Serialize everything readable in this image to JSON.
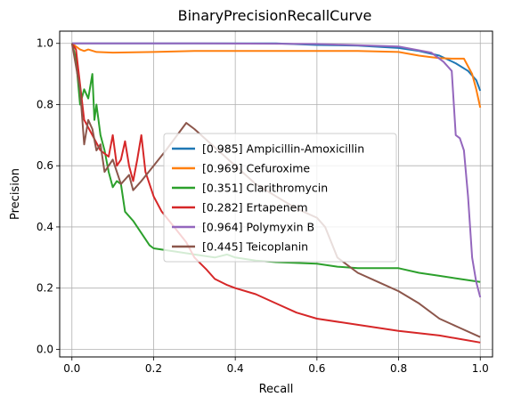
{
  "chart_data": {
    "type": "line",
    "title": "BinaryPrecisionRecallCurve",
    "xlabel": "Recall",
    "ylabel": "Precision",
    "xlim": [
      -0.03,
      1.03
    ],
    "ylim": [
      -0.025,
      1.04
    ],
    "xticks": [
      "0.0",
      "0.2",
      "0.4",
      "0.6",
      "0.8",
      "1.0"
    ],
    "yticks": [
      "0.0",
      "0.2",
      "0.4",
      "0.6",
      "0.8",
      "1.0"
    ],
    "grid": true,
    "legend_position": "center",
    "series": [
      {
        "name": "[0.985] Ampicillin-Amoxicillin",
        "color": "#1f77b4",
        "points": [
          [
            0,
            1.0
          ],
          [
            0.1,
            1.0
          ],
          [
            0.3,
            1.0
          ],
          [
            0.5,
            1.0
          ],
          [
            0.6,
            0.995
          ],
          [
            0.7,
            0.993
          ],
          [
            0.8,
            0.985
          ],
          [
            0.85,
            0.975
          ],
          [
            0.9,
            0.96
          ],
          [
            0.94,
            0.935
          ],
          [
            0.97,
            0.91
          ],
          [
            0.99,
            0.88
          ],
          [
            1.0,
            0.845
          ]
        ]
      },
      {
        "name": "[0.969] Cefuroxime",
        "color": "#ff7f0e",
        "points": [
          [
            0,
            1.0
          ],
          [
            0.01,
            0.99
          ],
          [
            0.02,
            0.98
          ],
          [
            0.03,
            0.975
          ],
          [
            0.04,
            0.98
          ],
          [
            0.06,
            0.972
          ],
          [
            0.1,
            0.97
          ],
          [
            0.2,
            0.972
          ],
          [
            0.3,
            0.975
          ],
          [
            0.5,
            0.975
          ],
          [
            0.7,
            0.975
          ],
          [
            0.8,
            0.972
          ],
          [
            0.85,
            0.96
          ],
          [
            0.88,
            0.955
          ],
          [
            0.9,
            0.952
          ],
          [
            0.93,
            0.95
          ],
          [
            0.96,
            0.95
          ],
          [
            0.98,
            0.9
          ],
          [
            0.99,
            0.85
          ],
          [
            1.0,
            0.79
          ]
        ]
      },
      {
        "name": "[0.351] Clarithromycin",
        "color": "#2ca02c",
        "points": [
          [
            0,
            1.0
          ],
          [
            0.01,
            0.95
          ],
          [
            0.02,
            0.8
          ],
          [
            0.03,
            0.85
          ],
          [
            0.04,
            0.82
          ],
          [
            0.05,
            0.9
          ],
          [
            0.055,
            0.75
          ],
          [
            0.06,
            0.8
          ],
          [
            0.07,
            0.7
          ],
          [
            0.08,
            0.65
          ],
          [
            0.09,
            0.58
          ],
          [
            0.1,
            0.53
          ],
          [
            0.11,
            0.55
          ],
          [
            0.12,
            0.54
          ],
          [
            0.13,
            0.45
          ],
          [
            0.15,
            0.42
          ],
          [
            0.17,
            0.38
          ],
          [
            0.19,
            0.34
          ],
          [
            0.2,
            0.33
          ],
          [
            0.25,
            0.32
          ],
          [
            0.3,
            0.31
          ],
          [
            0.35,
            0.3
          ],
          [
            0.38,
            0.31
          ],
          [
            0.4,
            0.3
          ],
          [
            0.45,
            0.29
          ],
          [
            0.5,
            0.285
          ],
          [
            0.6,
            0.28
          ],
          [
            0.65,
            0.27
          ],
          [
            0.7,
            0.265
          ],
          [
            0.8,
            0.265
          ],
          [
            0.85,
            0.25
          ],
          [
            0.9,
            0.24
          ],
          [
            0.95,
            0.23
          ],
          [
            1.0,
            0.22
          ]
        ]
      },
      {
        "name": "[0.282] Ertapenem",
        "color": "#d62728",
        "points": [
          [
            0,
            1.0
          ],
          [
            0.01,
            0.98
          ],
          [
            0.03,
            0.75
          ],
          [
            0.05,
            0.7
          ],
          [
            0.07,
            0.65
          ],
          [
            0.09,
            0.63
          ],
          [
            0.1,
            0.7
          ],
          [
            0.11,
            0.6
          ],
          [
            0.12,
            0.62
          ],
          [
            0.13,
            0.68
          ],
          [
            0.14,
            0.6
          ],
          [
            0.15,
            0.55
          ],
          [
            0.16,
            0.62
          ],
          [
            0.17,
            0.7
          ],
          [
            0.18,
            0.58
          ],
          [
            0.2,
            0.5
          ],
          [
            0.22,
            0.45
          ],
          [
            0.25,
            0.4
          ],
          [
            0.28,
            0.35
          ],
          [
            0.3,
            0.3
          ],
          [
            0.33,
            0.26
          ],
          [
            0.35,
            0.23
          ],
          [
            0.38,
            0.21
          ],
          [
            0.4,
            0.2
          ],
          [
            0.45,
            0.18
          ],
          [
            0.5,
            0.15
          ],
          [
            0.55,
            0.12
          ],
          [
            0.6,
            0.1
          ],
          [
            0.7,
            0.08
          ],
          [
            0.8,
            0.06
          ],
          [
            0.9,
            0.045
          ],
          [
            1.0,
            0.022
          ]
        ]
      },
      {
        "name": "[0.964] Polymyxin B",
        "color": "#9467bd",
        "points": [
          [
            0,
            1.0
          ],
          [
            0.3,
            1.0
          ],
          [
            0.6,
            0.998
          ],
          [
            0.8,
            0.99
          ],
          [
            0.88,
            0.97
          ],
          [
            0.91,
            0.94
          ],
          [
            0.93,
            0.91
          ],
          [
            0.94,
            0.7
          ],
          [
            0.95,
            0.69
          ],
          [
            0.96,
            0.65
          ],
          [
            0.97,
            0.5
          ],
          [
            0.98,
            0.3
          ],
          [
            0.99,
            0.22
          ],
          [
            1.0,
            0.17
          ]
        ]
      },
      {
        "name": "[0.445] Teicoplanin",
        "color": "#8c564b",
        "points": [
          [
            0,
            1.0
          ],
          [
            0.02,
            0.85
          ],
          [
            0.03,
            0.67
          ],
          [
            0.04,
            0.75
          ],
          [
            0.05,
            0.72
          ],
          [
            0.06,
            0.65
          ],
          [
            0.07,
            0.67
          ],
          [
            0.08,
            0.58
          ],
          [
            0.1,
            0.62
          ],
          [
            0.12,
            0.54
          ],
          [
            0.14,
            0.57
          ],
          [
            0.15,
            0.52
          ],
          [
            0.17,
            0.55
          ],
          [
            0.2,
            0.6
          ],
          [
            0.23,
            0.65
          ],
          [
            0.28,
            0.74
          ],
          [
            0.3,
            0.72
          ],
          [
            0.35,
            0.66
          ],
          [
            0.4,
            0.6
          ],
          [
            0.45,
            0.54
          ],
          [
            0.5,
            0.5
          ],
          [
            0.55,
            0.46
          ],
          [
            0.6,
            0.43
          ],
          [
            0.62,
            0.4
          ],
          [
            0.65,
            0.3
          ],
          [
            0.7,
            0.25
          ],
          [
            0.75,
            0.22
          ],
          [
            0.8,
            0.19
          ],
          [
            0.85,
            0.15
          ],
          [
            0.9,
            0.1
          ],
          [
            0.95,
            0.07
          ],
          [
            1.0,
            0.04
          ]
        ]
      }
    ]
  }
}
